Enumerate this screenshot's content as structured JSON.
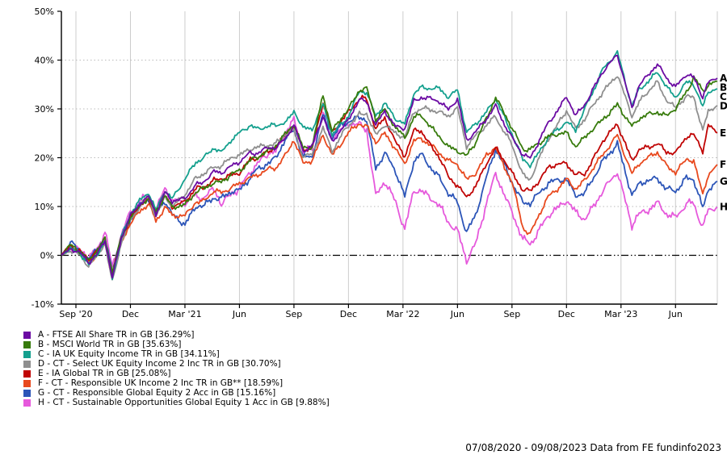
{
  "footer": {
    "text": "07/08/2020 - 09/08/2023 Data from FE fundinfo2023"
  },
  "chart_data": {
    "type": "line",
    "title": "",
    "ylabel": "",
    "xlabel": "",
    "y_axis": {
      "range": [
        -10,
        50
      ],
      "ticks": [
        50,
        40,
        30,
        20,
        10,
        0,
        -10
      ],
      "tick_suffix": "%"
    },
    "x_axis": {
      "range_months": [
        0,
        36.1
      ],
      "ticks": [
        {
          "label": "Sep '20",
          "t": 0.8
        },
        {
          "label": "Dec",
          "t": 3.8
        },
        {
          "label": "Mar '21",
          "t": 6.8
        },
        {
          "label": "Jun",
          "t": 9.8
        },
        {
          "label": "Sep",
          "t": 12.8
        },
        {
          "label": "Dec",
          "t": 15.8
        },
        {
          "label": "Mar '22",
          "t": 18.8
        },
        {
          "label": "Jun",
          "t": 21.8
        },
        {
          "label": "Sep",
          "t": 24.8
        },
        {
          "label": "Dec",
          "t": 27.8
        },
        {
          "label": "Mar '23",
          "t": 30.8
        },
        {
          "label": "Jun",
          "t": 33.8
        }
      ]
    },
    "grid": {
      "vline_color": "#cccccc",
      "hline_color": "#bbbbbb",
      "zero_line_color": "#000000",
      "axis_color": "#000000"
    },
    "legend_position": "bottom-left",
    "t_points": [
      0,
      0.5,
      1,
      1.5,
      2,
      2.4,
      2.8,
      3.3,
      3.8,
      4.4,
      4.8,
      5.2,
      5.7,
      6.1,
      6.8,
      7.4,
      7.8,
      8.4,
      8.8,
      9.4,
      9.8,
      10.4,
      10.8,
      11.4,
      11.8,
      12.4,
      12.8,
      13.3,
      13.8,
      14.4,
      14.9,
      15.4,
      15.8,
      16.4,
      16.8,
      17.3,
      17.8,
      18.4,
      18.9,
      19.4,
      19.8,
      20.8,
      21.3,
      21.8,
      22.3,
      22.8,
      23.4,
      23.9,
      24.8,
      25.4,
      25.8,
      26.8,
      27.8,
      28.3,
      28.8,
      29.8,
      30.6,
      31.4,
      31.8,
      32.8,
      33.3,
      33.8,
      34.4,
      34.8,
      35.3,
      35.6,
      36.1
    ],
    "series": [
      {
        "letter": "A",
        "name": "FTSE All Share TR in GB",
        "final_pct": "36.29",
        "color": "#6B0BA3",
        "vol": 0.55,
        "values": [
          0,
          1.5,
          0.5,
          -1.5,
          0.5,
          3,
          -4.5,
          3.5,
          8,
          11,
          12,
          8.5,
          13,
          11,
          11.5,
          14.5,
          15,
          17,
          17,
          18.5,
          19,
          21,
          21,
          22,
          22,
          24.5,
          26.5,
          21.5,
          22.5,
          28.5,
          23,
          26,
          27.5,
          32,
          31.5,
          26.5,
          29.5,
          26.5,
          26,
          31.5,
          32.5,
          31.5,
          30,
          32,
          23.5,
          25.5,
          28,
          30.5,
          24,
          20.5,
          20,
          27,
          32.5,
          28.5,
          31,
          37.5,
          41,
          30,
          35,
          39,
          36.5,
          34.5,
          37,
          36.5,
          32.5,
          35.5,
          36.29
        ]
      },
      {
        "letter": "B",
        "name": "MSCI World TR in GB",
        "final_pct": "35.63",
        "color": "#377B0C",
        "vol": 0.6,
        "values": [
          0,
          2,
          1,
          -1,
          1,
          3.5,
          -3.5,
          3.5,
          8,
          10.5,
          11.5,
          9,
          12,
          10,
          10.5,
          13,
          13.5,
          15,
          15,
          16.5,
          17.5,
          19.5,
          20,
          21.5,
          22.5,
          25,
          27,
          22,
          22,
          33,
          25.5,
          28,
          30,
          34,
          34,
          28,
          30,
          26,
          24,
          28.5,
          28.5,
          24.5,
          22,
          21.5,
          20.5,
          23,
          28,
          32.5,
          26,
          22,
          21.5,
          24.5,
          25,
          22.5,
          24,
          28,
          31,
          26.5,
          28,
          29.5,
          28.5,
          30,
          33.5,
          36.5,
          33.5,
          35,
          35.63
        ]
      },
      {
        "letter": "C",
        "name": "IA UK Equity Income TR in GB",
        "final_pct": "34.11",
        "color": "#14A08E",
        "vol": 0.55,
        "values": [
          0,
          1.5,
          0.5,
          -2,
          0.5,
          3,
          -4.5,
          3.5,
          8.5,
          11.5,
          13,
          9,
          13.5,
          11.5,
          15.5,
          19,
          20,
          22,
          21,
          24,
          25,
          26.5,
          26,
          26.5,
          26.5,
          27.5,
          29.5,
          26,
          26,
          31,
          24.5,
          27,
          28.5,
          33.5,
          33.5,
          28.5,
          31,
          28,
          27,
          33,
          34.5,
          34,
          32.5,
          34,
          25,
          27,
          29.5,
          32,
          25,
          19.5,
          18.5,
          24,
          27.5,
          25.5,
          30,
          38,
          41.5,
          30.5,
          34,
          37.5,
          34.5,
          32.5,
          35.5,
          35,
          30.5,
          33.5,
          34.11
        ]
      },
      {
        "letter": "D",
        "name": "CT - Select UK Equity Income 2 Inc TR in GB",
        "final_pct": "30.70",
        "color": "#8F8F8F",
        "vol": 0.6,
        "values": [
          0,
          1,
          0,
          -2,
          0,
          2.5,
          -5.5,
          2.5,
          7.5,
          10.5,
          12,
          8,
          12,
          10,
          12.5,
          16,
          16.5,
          18,
          18.5,
          20,
          20.5,
          22,
          22,
          22.5,
          23,
          25,
          25.5,
          20.5,
          20.5,
          26,
          21.5,
          24.5,
          26.5,
          29,
          29,
          24.5,
          27,
          25,
          24,
          29.5,
          30,
          29.5,
          28.5,
          30,
          22.5,
          24.5,
          26.5,
          28.5,
          22.5,
          16.5,
          15.5,
          24,
          29.5,
          26,
          28,
          33.5,
          37,
          28.5,
          31.5,
          35.5,
          32,
          30,
          32.5,
          32.5,
          25.5,
          29.5,
          30.7
        ]
      },
      {
        "letter": "E",
        "name": "IA Global TR in GB",
        "final_pct": "25.08",
        "color": "#C00404",
        "vol": 0.6,
        "values": [
          0,
          2,
          1,
          -1,
          1,
          3,
          -4,
          3.5,
          7.5,
          10.5,
          11.5,
          8.5,
          12,
          10,
          11,
          13.5,
          14,
          15.5,
          15.5,
          16.5,
          17,
          19.5,
          20,
          21.5,
          22,
          25,
          26.5,
          21.5,
          22,
          31.5,
          25,
          27.5,
          29.5,
          32,
          32,
          26,
          28,
          23,
          20.5,
          25.5,
          25.5,
          20,
          16,
          14.5,
          11.8,
          14,
          19,
          22,
          17,
          13.5,
          13,
          18,
          19,
          16.5,
          16.5,
          23.5,
          27,
          19.5,
          21.5,
          23,
          21,
          21,
          24.5,
          24.5,
          21.5,
          26.5,
          25.08
        ]
      },
      {
        "letter": "F",
        "name": "CT - Responsible UK Income 2 Inc TR in GB**",
        "final_pct": "18.59",
        "color": "#E8491E",
        "vol": 0.6,
        "values": [
          0,
          1.5,
          0.5,
          -1.5,
          0.5,
          2.5,
          -4.5,
          2.5,
          6.5,
          9.5,
          10.5,
          7,
          10,
          8,
          8,
          11,
          11,
          13,
          13,
          14,
          14.5,
          16,
          16.5,
          17.5,
          18,
          21,
          23.5,
          19,
          19.5,
          24.5,
          20.5,
          23,
          25,
          27,
          26.5,
          23,
          25,
          22,
          18.5,
          23.5,
          24,
          21,
          19.5,
          18.5,
          15.5,
          17,
          20.5,
          22,
          15,
          5.5,
          4.5,
          12,
          15.5,
          13.5,
          15.5,
          20.5,
          24.5,
          16.5,
          19,
          21,
          18.5,
          17,
          19.5,
          19.5,
          12.5,
          16.5,
          18.59
        ]
      },
      {
        "letter": "G",
        "name": "CT - Responsible Global Equity 2 Acc in GB",
        "final_pct": "15.16",
        "color": "#2C55B8",
        "vol": 0.75,
        "values": [
          0,
          2.5,
          1,
          -1,
          1.5,
          3.5,
          -3.5,
          4,
          7.5,
          10.5,
          11.5,
          8.5,
          11,
          8.5,
          6.5,
          10,
          10,
          12,
          11.5,
          13,
          13.5,
          16,
          17.5,
          19,
          20,
          24,
          26,
          20,
          20,
          29,
          24,
          26.5,
          27.5,
          28.5,
          27.5,
          18,
          21,
          17,
          12,
          19.5,
          20.5,
          16,
          12.5,
          11,
          4.8,
          8,
          16,
          22,
          15,
          11,
          10.5,
          15,
          15.5,
          12.5,
          12.5,
          19.5,
          23,
          12.5,
          14.5,
          16,
          13.5,
          13,
          16,
          15.5,
          9.5,
          13.5,
          15.16
        ]
      },
      {
        "letter": "H",
        "name": "CT - Sustainable Opportunities Global Equity 1 Acc in GB",
        "final_pct": "9.88",
        "color": "#E659DC",
        "vol": 0.9,
        "values": [
          0,
          2,
          1,
          -0.5,
          1.5,
          5,
          -2.5,
          4.5,
          8.5,
          11.5,
          12.5,
          9,
          14,
          11,
          10.5,
          12,
          12,
          13.5,
          10.5,
          13,
          13.5,
          17,
          19,
          21,
          21,
          26,
          27.5,
          21.5,
          22,
          29,
          24,
          26,
          27,
          26.5,
          26,
          12,
          15,
          11,
          5.5,
          13,
          13.5,
          10,
          7,
          5,
          -1.3,
          2.5,
          11,
          16.5,
          9,
          3,
          2.5,
          8,
          11.5,
          8.5,
          7.5,
          13,
          17,
          6,
          8.5,
          10.5,
          8.5,
          8,
          10.5,
          10.5,
          6,
          9,
          9.88
        ]
      }
    ]
  }
}
